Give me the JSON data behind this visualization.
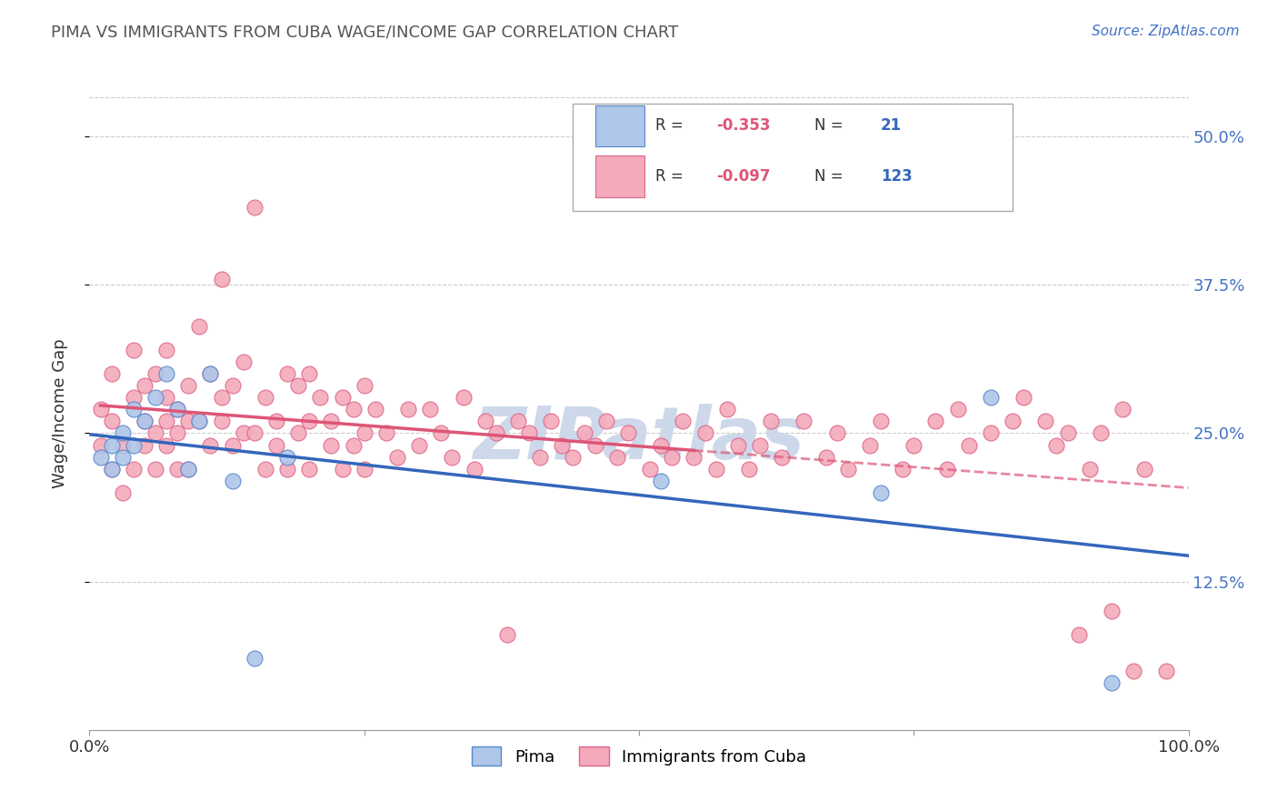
{
  "title": "PIMA VS IMMIGRANTS FROM CUBA WAGE/INCOME GAP CORRELATION CHART",
  "source_text": "Source: ZipAtlas.com",
  "ylabel": "Wage/Income Gap",
  "xlim": [
    0.0,
    1.0
  ],
  "ylim": [
    0.0,
    0.533
  ],
  "ytick_positions": [
    0.125,
    0.25,
    0.375,
    0.5
  ],
  "ytick_labels": [
    "12.5%",
    "25.0%",
    "37.5%",
    "50.0%"
  ],
  "grid_color": "#cccccc",
  "background_color": "#ffffff",
  "watermark_text": "ZIPatlas",
  "watermark_color": "#cdd8ea",
  "series1_label": "Pima",
  "series1_face_color": "#aec6e8",
  "series1_edge_color": "#5588cc",
  "series1_R": -0.353,
  "series1_N": 21,
  "series1_line_color": "#3366bb",
  "series2_label": "Immigrants from Cuba",
  "series2_face_color": "#f4aabb",
  "series2_edge_color": "#dd6688",
  "series2_R": -0.097,
  "series2_N": 123,
  "series2_line_color": "#dd5577",
  "legend_R_color": "#dd5577",
  "legend_N_color": "#3366bb",
  "pima_x": [
    0.01,
    0.02,
    0.02,
    0.03,
    0.03,
    0.04,
    0.04,
    0.05,
    0.06,
    0.07,
    0.08,
    0.09,
    0.1,
    0.11,
    0.13,
    0.15,
    0.18,
    0.52,
    0.72,
    0.82,
    0.93
  ],
  "pima_y": [
    0.23,
    0.24,
    0.22,
    0.25,
    0.23,
    0.27,
    0.24,
    0.26,
    0.28,
    0.3,
    0.27,
    0.22,
    0.26,
    0.3,
    0.21,
    0.06,
    0.23,
    0.21,
    0.2,
    0.28,
    0.04
  ],
  "cuba_x": [
    0.01,
    0.01,
    0.02,
    0.02,
    0.02,
    0.03,
    0.03,
    0.04,
    0.04,
    0.04,
    0.05,
    0.05,
    0.05,
    0.06,
    0.06,
    0.06,
    0.07,
    0.07,
    0.07,
    0.07,
    0.08,
    0.08,
    0.08,
    0.09,
    0.09,
    0.09,
    0.1,
    0.1,
    0.11,
    0.11,
    0.12,
    0.12,
    0.12,
    0.13,
    0.13,
    0.14,
    0.14,
    0.15,
    0.15,
    0.16,
    0.16,
    0.17,
    0.17,
    0.18,
    0.18,
    0.19,
    0.19,
    0.2,
    0.2,
    0.2,
    0.21,
    0.22,
    0.22,
    0.23,
    0.23,
    0.24,
    0.24,
    0.25,
    0.25,
    0.25,
    0.26,
    0.27,
    0.28,
    0.29,
    0.3,
    0.31,
    0.32,
    0.33,
    0.34,
    0.35,
    0.36,
    0.37,
    0.38,
    0.39,
    0.4,
    0.41,
    0.42,
    0.43,
    0.44,
    0.45,
    0.46,
    0.47,
    0.48,
    0.49,
    0.51,
    0.52,
    0.53,
    0.54,
    0.55,
    0.56,
    0.57,
    0.58,
    0.59,
    0.6,
    0.61,
    0.62,
    0.63,
    0.65,
    0.67,
    0.68,
    0.69,
    0.71,
    0.72,
    0.74,
    0.75,
    0.77,
    0.78,
    0.79,
    0.8,
    0.82,
    0.84,
    0.85,
    0.87,
    0.88,
    0.89,
    0.9,
    0.91,
    0.92,
    0.93,
    0.94,
    0.95,
    0.96,
    0.98
  ],
  "cuba_y": [
    0.27,
    0.24,
    0.3,
    0.26,
    0.22,
    0.24,
    0.2,
    0.32,
    0.28,
    0.22,
    0.26,
    0.29,
    0.24,
    0.22,
    0.25,
    0.3,
    0.28,
    0.26,
    0.32,
    0.24,
    0.22,
    0.27,
    0.25,
    0.29,
    0.26,
    0.22,
    0.34,
    0.26,
    0.3,
    0.24,
    0.38,
    0.28,
    0.26,
    0.29,
    0.24,
    0.31,
    0.25,
    0.44,
    0.25,
    0.28,
    0.22,
    0.26,
    0.24,
    0.3,
    0.22,
    0.29,
    0.25,
    0.3,
    0.26,
    0.22,
    0.28,
    0.26,
    0.24,
    0.28,
    0.22,
    0.27,
    0.24,
    0.29,
    0.25,
    0.22,
    0.27,
    0.25,
    0.23,
    0.27,
    0.24,
    0.27,
    0.25,
    0.23,
    0.28,
    0.22,
    0.26,
    0.25,
    0.08,
    0.26,
    0.25,
    0.23,
    0.26,
    0.24,
    0.23,
    0.25,
    0.24,
    0.26,
    0.23,
    0.25,
    0.22,
    0.24,
    0.23,
    0.26,
    0.23,
    0.25,
    0.22,
    0.27,
    0.24,
    0.22,
    0.24,
    0.26,
    0.23,
    0.26,
    0.23,
    0.25,
    0.22,
    0.24,
    0.26,
    0.22,
    0.24,
    0.26,
    0.22,
    0.27,
    0.24,
    0.25,
    0.26,
    0.28,
    0.26,
    0.24,
    0.25,
    0.08,
    0.22,
    0.25,
    0.1,
    0.27,
    0.05,
    0.22,
    0.05
  ]
}
